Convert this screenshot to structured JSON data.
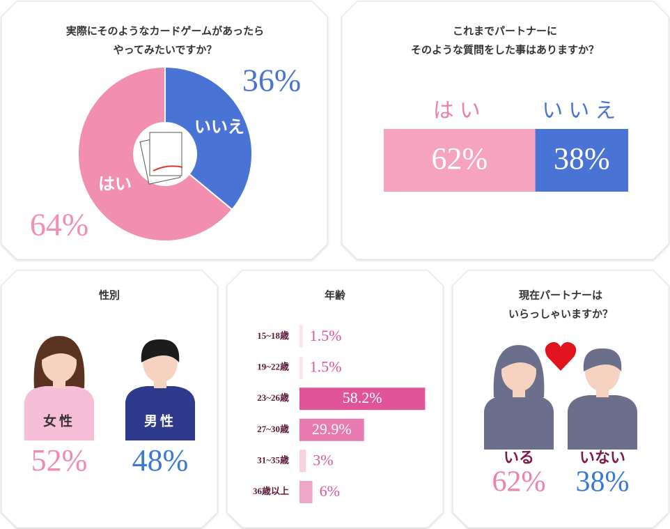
{
  "chart_data": [
    {
      "type": "donut",
      "title": [
        "実際にそのようなカードゲームがあったら",
        "やってみたいですか？"
      ],
      "categories": [
        "いいえ",
        "はい"
      ],
      "values": [
        36,
        64
      ],
      "value_labels": [
        "36%",
        "64%"
      ],
      "colors": [
        "#4a73d6",
        "#f28fb0"
      ]
    },
    {
      "type": "stacked-bar",
      "title": [
        "これまでパートナーに",
        "そのような質問をした事はありますか？"
      ],
      "categories": [
        "はい",
        "いいえ"
      ],
      "values": [
        62,
        38
      ],
      "value_labels": [
        "62%",
        "38%"
      ],
      "colors": [
        "#f5a3bf",
        "#4a73d6"
      ]
    },
    {
      "type": "pictogram",
      "title": [
        "性別"
      ],
      "categories": [
        "女性",
        "男性"
      ],
      "values": [
        52,
        48
      ],
      "value_labels": [
        "52%",
        "48%"
      ],
      "colors": [
        "#f08ab0",
        "#3a78d8"
      ]
    },
    {
      "type": "bar",
      "title": [
        "年齢"
      ],
      "categories": [
        "15~18歳",
        "19~22歳",
        "23~26歳",
        "27~30歳",
        "31~35歳",
        "36歳以上"
      ],
      "values": [
        1.5,
        1.5,
        58.2,
        29.9,
        3,
        6
      ],
      "value_labels": [
        "1.5%",
        "1.5%",
        "58.2%",
        "29.9%",
        "3%",
        "6%"
      ],
      "colors": [
        "#fbe4ef",
        "#fbe4ef",
        "#e0559a",
        "#e77bb0",
        "#f8d2e3",
        "#f0a6c8"
      ]
    },
    {
      "type": "pictogram-partner",
      "title": [
        "現在パートナーは",
        "いらっしゃいますか？"
      ],
      "categories": [
        "いる",
        "いない"
      ],
      "values": [
        62,
        38
      ],
      "value_labels": [
        "62%",
        "38%"
      ],
      "colors": [
        "#ee82ad",
        "#3a78d8"
      ]
    }
  ]
}
